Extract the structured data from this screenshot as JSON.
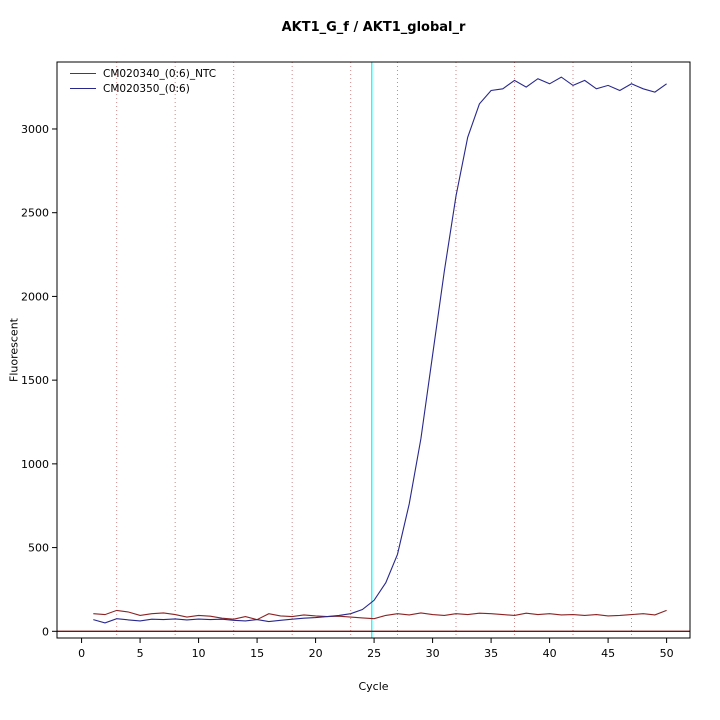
{
  "chart_data": {
    "type": "line",
    "title": "AKT1_G_f / AKT1_global_r",
    "xlabel": "Cycle",
    "ylabel": "Fluorescent",
    "xlim": [
      -2.1,
      52
    ],
    "ylim": [
      -40,
      3400
    ],
    "xticks": [
      0,
      5,
      10,
      15,
      20,
      25,
      30,
      35,
      40,
      45,
      50
    ],
    "yticks": [
      0,
      500,
      1000,
      1500,
      2000,
      2500,
      3000
    ],
    "x_start_cycle": 1,
    "x_step": 1,
    "threshold_cycle": 24.8,
    "baseline_y": 0,
    "gridlines_x": [
      3,
      8,
      13,
      18,
      23,
      27,
      32,
      37,
      42,
      47
    ],
    "grid": "faint dotted vertical gridlines",
    "legend_position": "top-left",
    "colors": {
      "ntc_line": "#8B2323",
      "sample_line": "#28288C",
      "threshold": "#00FFFF",
      "baseline": "#7B1010",
      "grid": "#cc8888",
      "box": "#000000"
    },
    "series": [
      {
        "name": "CM020340_(0:6)_NTC",
        "color": "#8B2323",
        "values": [
          105,
          100,
          125,
          115,
          95,
          105,
          110,
          100,
          85,
          95,
          90,
          78,
          72,
          88,
          70,
          105,
          92,
          88,
          98,
          92,
          88,
          90,
          85,
          80,
          75,
          95,
          105,
          98,
          110,
          100,
          95,
          105,
          100,
          108,
          105,
          100,
          95,
          108,
          100,
          105,
          98,
          100,
          95,
          100,
          92,
          95,
          100,
          105,
          98,
          125
        ]
      },
      {
        "name": "CM020350_(0:6)",
        "color": "#28288C",
        "values": [
          70,
          50,
          75,
          68,
          62,
          72,
          70,
          74,
          68,
          73,
          70,
          72,
          66,
          62,
          70,
          58,
          66,
          72,
          78,
          82,
          88,
          95,
          105,
          130,
          185,
          290,
          460,
          760,
          1150,
          1650,
          2150,
          2600,
          2950,
          3150,
          3230,
          3240,
          3290,
          3250,
          3300,
          3270,
          3310,
          3260,
          3290,
          3240,
          3260,
          3230,
          3270,
          3240,
          3220,
          3270
        ]
      }
    ]
  }
}
